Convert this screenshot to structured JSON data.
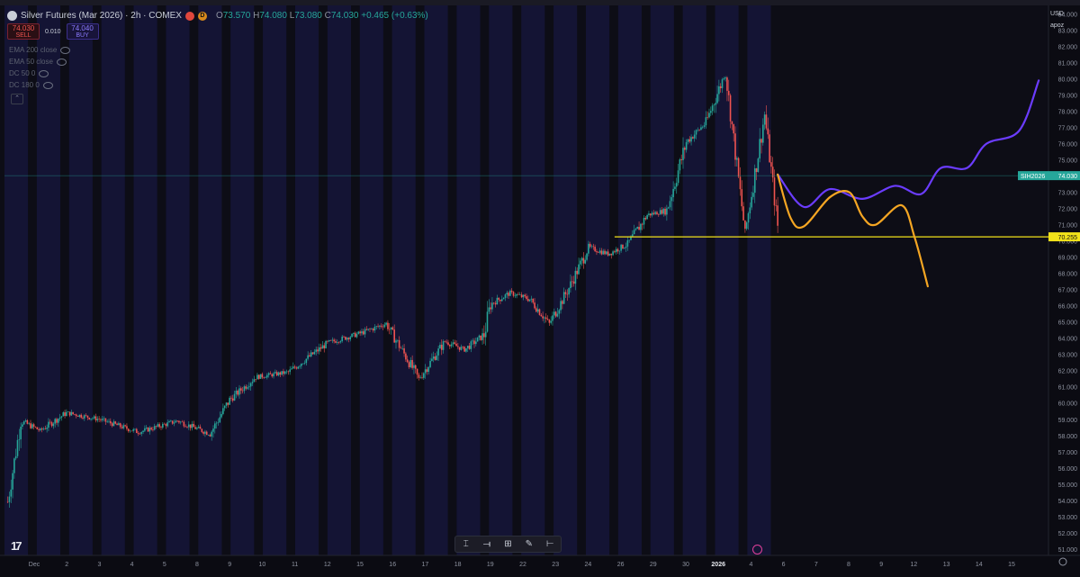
{
  "header": {
    "title": "Silver Futures (Mar 2026) · 2h · COMEX",
    "badge_c": "",
    "badge_d": "D",
    "ohlc": [
      {
        "k": "O",
        "v": "73.570"
      },
      {
        "k": "H",
        "v": "74.080"
      },
      {
        "k": "L",
        "v": "73.080"
      },
      {
        "k": "C",
        "v": "74.030"
      }
    ],
    "change": "+0.465 (+0.63%)"
  },
  "trade": {
    "sell_price": "74.030",
    "sell_label": "SELL",
    "spread": "0.010",
    "buy_price": "74.040",
    "buy_label": "BUY"
  },
  "indicators": [
    "EMA 200 close",
    "EMA 50 close",
    "DC 50 0",
    "DC 180 0"
  ],
  "right_panel": {
    "currency": "USD",
    "menu_label": "apoz"
  },
  "price_axis": {
    "labels": [
      "51.000",
      "52.000",
      "53.000",
      "54.000",
      "55.000",
      "56.000",
      "57.000",
      "58.000",
      "59.000",
      "60.000",
      "61.000",
      "62.000",
      "63.000",
      "64.000",
      "65.000",
      "66.000",
      "67.000",
      "68.000",
      "69.000",
      "70.000",
      "71.000",
      "72.000",
      "73.000",
      "74.000",
      "75.000",
      "76.000",
      "77.000",
      "78.000",
      "79.000",
      "80.000",
      "81.000",
      "82.000",
      "83.000",
      "84.000"
    ],
    "last_price": {
      "symbol": "SIH2026",
      "value": "74.030",
      "color": "#26a69a"
    },
    "level_line": {
      "value": "70.255",
      "color": "#f2e21a"
    }
  },
  "time_axis": [
    "Dec",
    "2",
    "3",
    "4",
    "5",
    "8",
    "9",
    "10",
    "11",
    "12",
    "15",
    "16",
    "17",
    "18",
    "19",
    "22",
    "23",
    "24",
    "26",
    "29",
    "30",
    "2026",
    "4",
    "6",
    "7",
    "8",
    "9",
    "12",
    "13",
    "14",
    "15"
  ],
  "logo": "17",
  "toolbar": {
    "tools": [
      "cursor-icon",
      "line-icon",
      "measure-icon",
      "brush-icon",
      "ruler-icon"
    ]
  },
  "chart_data": {
    "type": "line",
    "title": "Silver Futures (Mar 2026) · 2h · COMEX",
    "ylim": [
      50.6,
      84.2
    ],
    "support_level": 70.255,
    "last_price": 74.03,
    "price_path": {
      "x_index": [
        0,
        2,
        5,
        9,
        14,
        20,
        26,
        31,
        34,
        38,
        43,
        49,
        54,
        58,
        63,
        67,
        70,
        73,
        74,
        77,
        80,
        83,
        86,
        89,
        92,
        95,
        98,
        101,
        104,
        107,
        110,
        113,
        116,
        118
      ],
      "y": [
        53.9,
        58.9,
        58.3,
        59.4,
        59.0,
        58.2,
        58.9,
        58.1,
        60.2,
        61.6,
        61.9,
        63.7,
        64.3,
        64.9,
        61.5,
        63.8,
        63.3,
        64.2,
        66.1,
        66.8,
        66.4,
        64.9,
        67.1,
        69.6,
        69.2,
        69.8,
        71.6,
        71.9,
        76.1,
        77.3,
        80.4,
        70.5,
        77.8,
        70.9
      ]
    },
    "series": [
      {
        "name": "",
        "color": "#6b3cff",
        "x": [
          118,
          122,
          126,
          131,
          136,
          140,
          143,
          147,
          150,
          155,
          158
        ],
        "y": [
          74.1,
          72.1,
          73.2,
          72.6,
          73.4,
          72.9,
          74.5,
          74.5,
          76.0,
          76.8,
          79.9
        ]
      },
      {
        "name": "",
        "color": "#f5a623",
        "x": [
          118,
          120,
          122,
          126,
          129,
          131,
          133,
          137,
          139,
          141
        ],
        "y": [
          74.1,
          71.4,
          70.9,
          72.7,
          73.0,
          71.5,
          71.0,
          72.2,
          70.2,
          67.2
        ]
      }
    ]
  }
}
